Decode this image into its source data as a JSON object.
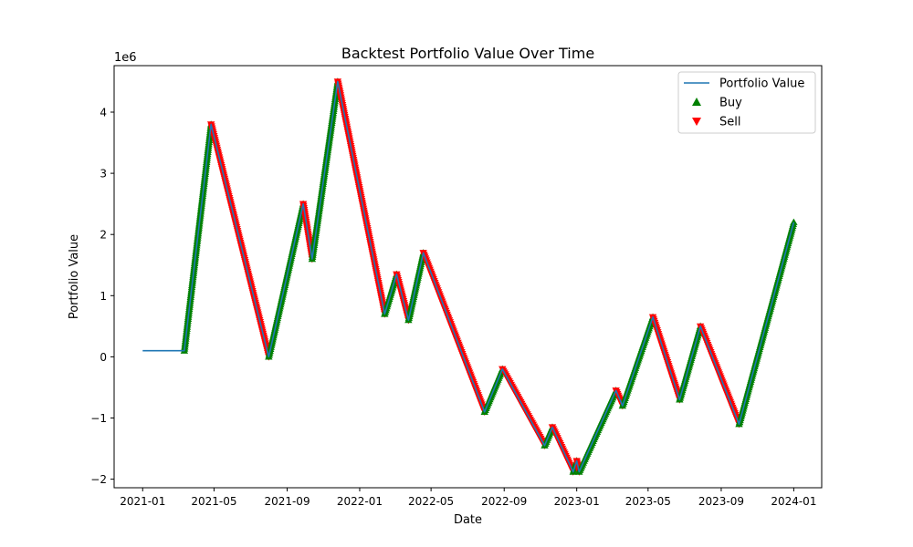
{
  "chart_data": {
    "type": "line",
    "title": "Backtest Portfolio Value Over Time",
    "xlabel": "Date",
    "ylabel": "Portfolio Value",
    "y_offset_text": "1e6",
    "x_axis_type": "date",
    "xlim": [
      "2020-11-14",
      "2024-02-17"
    ],
    "ylim": [
      -2.14,
      4.76
    ],
    "y_unit_multiplier": 1000000,
    "x_ticks": [
      "2021-01",
      "2021-05",
      "2021-09",
      "2022-01",
      "2022-05",
      "2022-09",
      "2023-01",
      "2023-05",
      "2023-09",
      "2024-01"
    ],
    "y_ticks": [
      -2,
      -1,
      0,
      1,
      2,
      3,
      4
    ],
    "grid": false,
    "legend_position": "top-right",
    "legend": [
      {
        "label": "Portfolio Value",
        "marker": "line",
        "color": "#1f77b4"
      },
      {
        "label": "Buy",
        "marker": "triangle-up",
        "color": "#008000"
      },
      {
        "label": "Sell",
        "marker": "triangle-down",
        "color": "#ff0000"
      }
    ],
    "series": [
      {
        "name": "Portfolio Value",
        "color": "#1f77b4",
        "x": [
          "2021-01-01",
          "2021-03-12",
          "2021-04-26",
          "2021-08-01",
          "2021-09-28",
          "2021-10-13",
          "2021-11-25",
          "2022-02-12",
          "2022-03-04",
          "2022-03-24",
          "2022-04-18",
          "2022-07-30",
          "2022-08-29",
          "2022-11-08",
          "2022-11-21",
          "2022-12-26",
          "2023-01-01",
          "2023-01-05",
          "2023-03-08",
          "2023-03-19",
          "2023-05-09",
          "2023-06-23",
          "2023-07-28",
          "2023-10-01",
          "2024-01-01"
        ],
        "y": [
          0.1,
          0.1,
          3.8,
          0.0,
          2.5,
          1.6,
          4.5,
          0.7,
          1.35,
          0.6,
          1.7,
          -0.9,
          -0.2,
          -1.45,
          -1.15,
          -1.88,
          -1.7,
          -1.88,
          -0.55,
          -0.8,
          0.65,
          -0.7,
          0.5,
          -1.1,
          2.2
        ]
      }
    ],
    "signals": {
      "buy": {
        "color": "#008000",
        "marker": "triangle-up"
      },
      "sell": {
        "color": "#ff0000",
        "marker": "triangle-down"
      }
    }
  }
}
